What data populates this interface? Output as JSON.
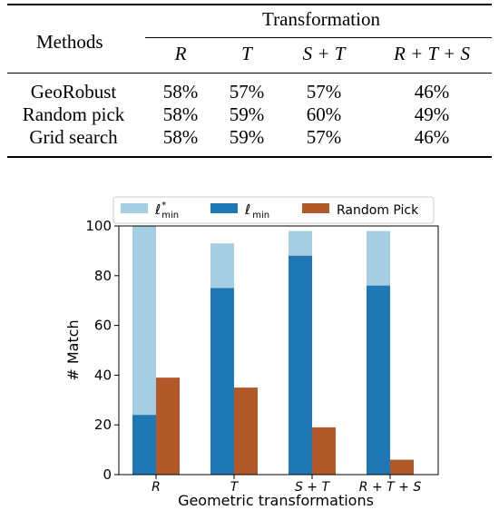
{
  "table": {
    "methods_header": "Methods",
    "group_header": "Transformation",
    "columns": [
      "R",
      "T",
      "S + T",
      "R + T + S"
    ],
    "rows": [
      {
        "method": "GeoRobust",
        "values": [
          "58%",
          "57%",
          "57%",
          "46%"
        ]
      },
      {
        "method": "Random pick",
        "values": [
          "58%",
          "59%",
          "60%",
          "49%"
        ]
      },
      {
        "method": "Grid search",
        "values": [
          "58%",
          "59%",
          "57%",
          "46%"
        ]
      }
    ]
  },
  "chart_data": {
    "type": "bar",
    "categories": [
      "R",
      "T",
      "S + T",
      "R + T + S"
    ],
    "series": [
      {
        "name": "ℓ*min",
        "label_main": "ℓ",
        "label_sup": "*",
        "label_sub": "min",
        "color": "#a6cee3",
        "values": [
          100,
          93,
          98,
          98
        ],
        "stack_with": "ℓmin"
      },
      {
        "name": "ℓmin",
        "label_main": "ℓ",
        "label_sub": "min",
        "color": "#1f78b4",
        "values": [
          24,
          75,
          88,
          76
        ]
      },
      {
        "name": "Random Pick",
        "color": "#b15928",
        "values": [
          39,
          35,
          19,
          6
        ]
      }
    ],
    "xlabel": "Geometric transformations",
    "ylabel": "# Match",
    "ylim": [
      0,
      100
    ],
    "yticks": [
      0,
      20,
      40,
      60,
      80,
      100
    ],
    "legend_position": "top",
    "grid": false
  }
}
